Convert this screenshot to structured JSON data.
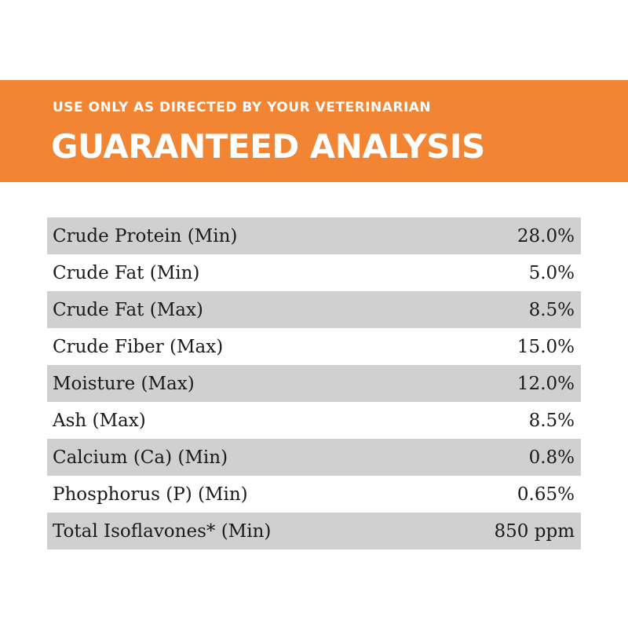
{
  "header": {
    "subtitle": "USE ONLY AS DIRECTED BY YOUR VETERINARIAN",
    "title": "GUARANTEED ANALYSIS",
    "background_color": "#f18534"
  },
  "analysis": {
    "row_shade_color": "#d0d0d0",
    "rows": [
      {
        "name": "Crude Protein (Min)",
        "value": "28.0%"
      },
      {
        "name": "Crude Fat (Min)",
        "value": "5.0%"
      },
      {
        "name": "Crude Fat (Max)",
        "value": "8.5%"
      },
      {
        "name": "Crude Fiber (Max)",
        "value": "15.0%"
      },
      {
        "name": "Moisture (Max)",
        "value": "12.0%"
      },
      {
        "name": "Ash (Max)",
        "value": "8.5%"
      },
      {
        "name": "Calcium (Ca) (Min)",
        "value": "0.8%"
      },
      {
        "name": "Phosphorus (P) (Min)",
        "value": "0.65%"
      },
      {
        "name": "Total Isoflavones* (Min)",
        "value": "850 ppm"
      }
    ]
  }
}
